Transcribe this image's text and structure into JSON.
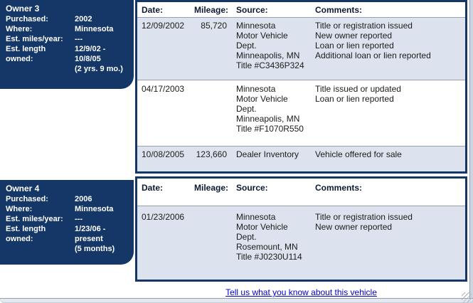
{
  "colors": {
    "navy": "#153767",
    "row_highlight": "#dce3ee",
    "link_blue": "#0000cc"
  },
  "owners": [
    {
      "title": "Owner 3",
      "fields": [
        {
          "label": "Purchased:",
          "value": "2002"
        },
        {
          "label": "Where:",
          "value": "Minnesota"
        },
        {
          "label": "Est. miles/year:",
          "value": "---"
        },
        {
          "label": "Est. length owned:",
          "value": [
            "12/9/02 -",
            "10/8/05",
            "(2 yrs. 9 mo.)"
          ]
        }
      ],
      "table": {
        "headers": [
          "Date:",
          "Mileage:",
          "Source:",
          "Comments:"
        ],
        "rows": [
          {
            "date": "12/09/2002",
            "mileage": "85,720",
            "source": [
              "Minnesota",
              "Motor Vehicle",
              "Dept.",
              "Minneapolis, MN",
              "Title #C3436P324"
            ],
            "comments": [
              "Title or registration issued",
              "New owner reported",
              "Loan or lien reported",
              "Additional loan or lien reported"
            ]
          },
          {
            "date": "04/17/2003",
            "mileage": "",
            "source": [
              "Minnesota",
              "Motor Vehicle",
              "Dept.",
              "Minneapolis, MN",
              "Title #F1070R550"
            ],
            "comments": [
              "Title issued or updated",
              "Loan or lien reported"
            ]
          },
          {
            "date": "10/08/2005",
            "mileage": "123,660",
            "source": [
              "Dealer Inventory"
            ],
            "comments": [
              "Vehicle offered for sale"
            ]
          }
        ]
      }
    },
    {
      "title": "Owner 4",
      "fields": [
        {
          "label": "Purchased:",
          "value": "2006"
        },
        {
          "label": "Where:",
          "value": "Minnesota"
        },
        {
          "label": "Est. miles/year:",
          "value": "---"
        },
        {
          "label": "Est. length owned:",
          "value": [
            "1/23/06 -",
            "present",
            "(5 months)"
          ]
        }
      ],
      "table": {
        "headers": [
          "Date:",
          "Mileage:",
          "Source:",
          "Comments:"
        ],
        "rows": [
          {
            "date": "01/23/2006",
            "mileage": "",
            "source": [
              "Minnesota",
              "Motor Vehicle",
              "Dept.",
              "Rosemount, MN",
              "Title #J0230U114"
            ],
            "comments": [
              "Title or registration issued",
              "New owner reported"
            ]
          }
        ]
      }
    }
  ],
  "footer": {
    "link_label": "Tell us what you know about this vehicle"
  }
}
